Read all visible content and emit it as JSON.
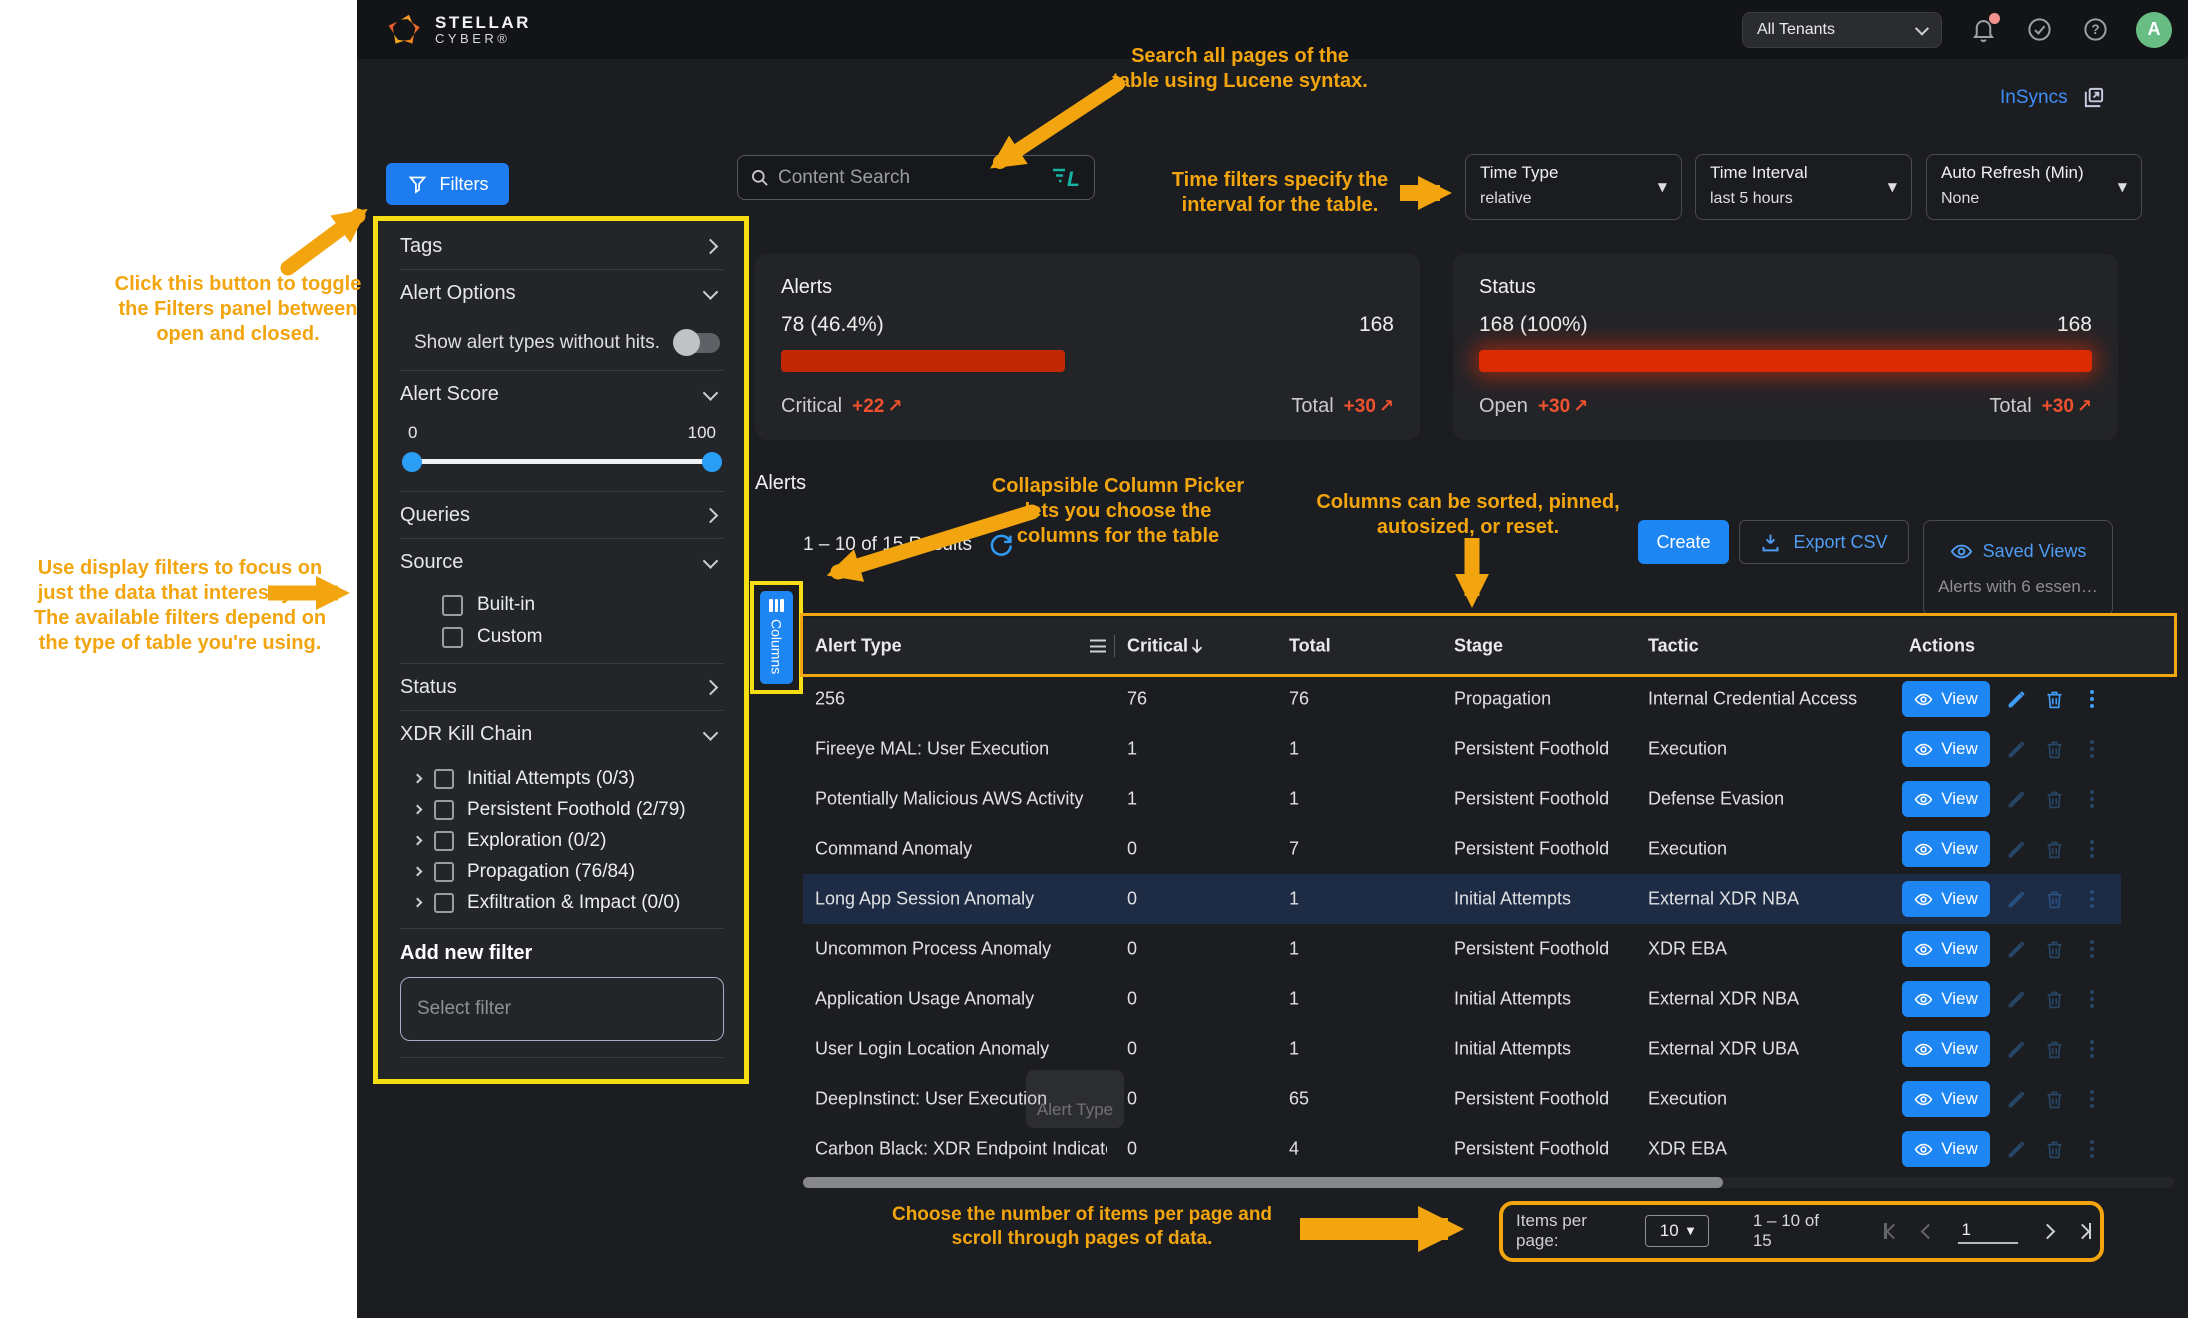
{
  "topbar": {
    "logo_line1": "STELLAR",
    "logo_line2": "CYBER®",
    "tenant_selector": "All Tenants",
    "avatar_initial": "A"
  },
  "links": {
    "insyncs": "InSyncs"
  },
  "annotations": {
    "search": "Search all pages of the\ntable using Lucene syntax.",
    "time_filters": "Time filters specify the\ninterval for the table.",
    "filters_toggle": "Click this button to toggle\nthe Filters panel between\nopen and closed.",
    "display_filters": "Use display filters to focus on\njust the data that interest you.\nThe available filters depend on\nthe type of table you're using.",
    "column_picker": "Collapsible Column Picker\nlets you choose the\ncolumns for the table",
    "columns_sort": "Columns can be sorted, pinned,\nautosized, or reset.",
    "pagination": "Choose the number of items per page and\nscroll through pages of data."
  },
  "controls": {
    "filters_button": "Filters",
    "search_placeholder": "Content Search",
    "lucene_icon": "L",
    "time_type": {
      "label": "Time Type",
      "value": "relative"
    },
    "time_interval": {
      "label": "Time Interval",
      "value": "last 5 hours"
    },
    "auto_refresh": {
      "label": "Auto Refresh (Min)",
      "value": "None"
    }
  },
  "filters_panel": {
    "tags_label": "Tags",
    "alert_options_label": "Alert Options",
    "show_alert_types_label": "Show alert types without hits.",
    "alert_score_label": "Alert Score",
    "score_min": "0",
    "score_max": "100",
    "queries_label": "Queries",
    "source_label": "Source",
    "source_options": [
      "Built-in",
      "Custom"
    ],
    "status_label": "Status",
    "xdr_kill_chain_label": "XDR Kill Chain",
    "kill_chain_items": [
      "Initial Attempts (0/3)",
      "Persistent Foothold (2/79)",
      "Exploration (0/2)",
      "Propagation (76/84)",
      "Exfiltration & Impact (0/0)"
    ],
    "add_new_filter_label": "Add new filter",
    "select_filter_placeholder": "Select filter"
  },
  "summary_cards": {
    "alerts": {
      "title": "Alerts",
      "left_value": "78 (46.4%)",
      "right_value": "168",
      "bar_pct": 46.4,
      "left_label": "Critical",
      "left_delta": "+22",
      "right_label": "Total",
      "right_delta": "+30"
    },
    "status": {
      "title": "Status",
      "left_value": "168 (100%)",
      "right_value": "168",
      "bar_pct": 100,
      "left_label": "Open",
      "left_delta": "+30",
      "right_label": "Total",
      "right_delta": "+30"
    }
  },
  "table_section": {
    "title": "Alerts",
    "results_text": "1 – 10 of 15 Results",
    "create_label": "Create",
    "export_csv_label": "Export CSV",
    "saved_views_label": "Saved Views",
    "saved_views_subtitle": "Alerts with 6 essen…",
    "columns_button_label": "Columns",
    "drag_ghost_label": "Alert Type"
  },
  "table": {
    "columns": [
      "Alert Type",
      "Critical",
      "Total",
      "Stage",
      "Tactic",
      "Actions"
    ],
    "sorted_column": "Critical",
    "sort_direction": "desc",
    "view_label": "View",
    "rows": [
      {
        "alert_type": "256",
        "critical": "76",
        "total": "76",
        "stage": "Propagation",
        "tactic": "Internal Credential Access",
        "highlight": false,
        "dim": false
      },
      {
        "alert_type": "Fireeye MAL: User Execution",
        "critical": "1",
        "total": "1",
        "stage": "Persistent Foothold",
        "tactic": "Execution",
        "highlight": false,
        "dim": true
      },
      {
        "alert_type": "Potentially Malicious AWS Activity",
        "critical": "1",
        "total": "1",
        "stage": "Persistent Foothold",
        "tactic": "Defense Evasion",
        "highlight": false,
        "dim": true
      },
      {
        "alert_type": "Command Anomaly",
        "critical": "0",
        "total": "7",
        "stage": "Persistent Foothold",
        "tactic": "Execution",
        "highlight": false,
        "dim": true
      },
      {
        "alert_type": "Long App Session Anomaly",
        "critical": "0",
        "total": "1",
        "stage": "Initial Attempts",
        "tactic": "External XDR NBA",
        "highlight": true,
        "dim": true
      },
      {
        "alert_type": "Uncommon Process Anomaly",
        "critical": "0",
        "total": "1",
        "stage": "Persistent Foothold",
        "tactic": "XDR EBA",
        "highlight": false,
        "dim": true
      },
      {
        "alert_type": "Application Usage Anomaly",
        "critical": "0",
        "total": "1",
        "stage": "Initial Attempts",
        "tactic": "External XDR NBA",
        "highlight": false,
        "dim": true
      },
      {
        "alert_type": "User Login Location Anomaly",
        "critical": "0",
        "total": "1",
        "stage": "Initial Attempts",
        "tactic": "External XDR UBA",
        "highlight": false,
        "dim": true
      },
      {
        "alert_type": "DeepInstinct: User Execution",
        "critical": "0",
        "total": "65",
        "stage": "Persistent Foothold",
        "tactic": "Execution",
        "highlight": false,
        "dim": true
      },
      {
        "alert_type": "Carbon Black: XDR Endpoint Indicato",
        "critical": "0",
        "total": "4",
        "stage": "Persistent Foothold",
        "tactic": "XDR EBA",
        "highlight": false,
        "dim": true
      }
    ]
  },
  "pagination": {
    "items_per_page_label": "Items per page:",
    "items_per_page_value": "10",
    "range_text": "1 – 10 of 15",
    "page_input_value": "1"
  },
  "colors": {
    "accent_blue": "#1d86f2",
    "annotation_orange": "#f2a50f",
    "highlight_yellow": "#f5de12",
    "bar_red": "#c22706",
    "delta_red": "#f0512e",
    "lucene_teal": "#17b3a2"
  }
}
